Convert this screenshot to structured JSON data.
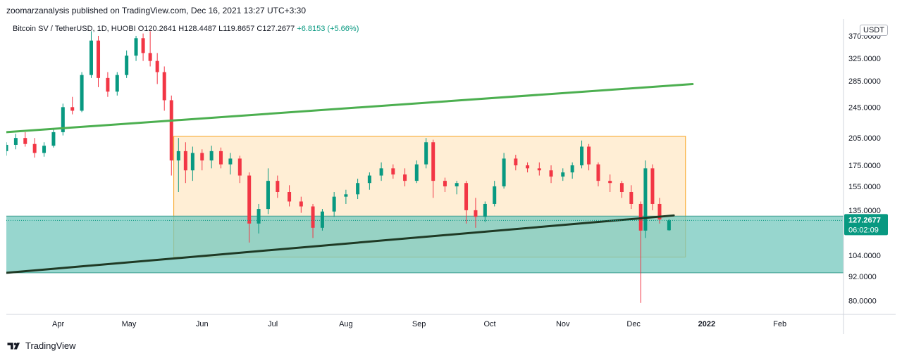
{
  "header": {
    "publisher": "zoomarzanalysis published on TradingView.com, Dec 16, 2021 13:27 UTC+3:30"
  },
  "legend": {
    "symbol": "Bitcoin SV / TetherUSD, 1D, HUOBI",
    "open_label": "O",
    "open": "120.2641",
    "high_label": "H",
    "high": "128.4487",
    "low_label": "L",
    "low": "119.8657",
    "close_label": "C",
    "close": "127.2677",
    "change": "+6.8153 (+5.66%)"
  },
  "unit": "USDT",
  "footer": {
    "brand": "TradingView"
  },
  "colors": {
    "up": "#089981",
    "down": "#f23645",
    "box": "#f7a21b",
    "zone": "#74c8bd",
    "trend_up": "#4caf50",
    "trend_support": "#1f3a25"
  },
  "chart_data": {
    "type": "candlestick",
    "title": "",
    "price_axis": {
      "scale": "log",
      "ticks": [
        80,
        92,
        104,
        135,
        155,
        175,
        205,
        245,
        285,
        325,
        370
      ],
      "tick_labels": [
        "80.0000",
        "92.0000",
        "104.0000",
        "135.0000",
        "155.0000",
        "175.0000",
        "205.0000",
        "245.0000",
        "285.0000",
        "325.0000",
        "370.0000"
      ]
    },
    "time_axis": {
      "range": [
        "2021-03-10",
        "2022-02-28"
      ],
      "labels": [
        {
          "date": "2021-04-01",
          "text": "Apr"
        },
        {
          "date": "2021-05-01",
          "text": "May"
        },
        {
          "date": "2021-06-01",
          "text": "Jun"
        },
        {
          "date": "2021-07-01",
          "text": "Jul"
        },
        {
          "date": "2021-08-01",
          "text": "Aug"
        },
        {
          "date": "2021-09-01",
          "text": "Sep"
        },
        {
          "date": "2021-10-01",
          "text": "Oct"
        },
        {
          "date": "2021-11-01",
          "text": "Nov"
        },
        {
          "date": "2021-12-01",
          "text": "Dec"
        },
        {
          "date": "2022-01-01",
          "text": "2022"
        },
        {
          "date": "2022-02-01",
          "text": "Feb"
        }
      ]
    },
    "last_price": {
      "value": 127.2677,
      "label": "127.2677",
      "countdown": "06:02:09"
    },
    "candles": [
      [
        "2021-03-10",
        190,
        200,
        185,
        197
      ],
      [
        "2021-03-14",
        197,
        210,
        192,
        205
      ],
      [
        "2021-03-18",
        205,
        212,
        195,
        198
      ],
      [
        "2021-03-22",
        198,
        205,
        183,
        188
      ],
      [
        "2021-03-26",
        188,
        200,
        184,
        196
      ],
      [
        "2021-03-30",
        196,
        215,
        194,
        212
      ],
      [
        "2021-04-03",
        212,
        250,
        208,
        245
      ],
      [
        "2021-04-07",
        245,
        260,
        235,
        240
      ],
      [
        "2021-04-11",
        240,
        300,
        238,
        295
      ],
      [
        "2021-04-15",
        295,
        380,
        290,
        360
      ],
      [
        "2021-04-18",
        360,
        370,
        275,
        290
      ],
      [
        "2021-04-22",
        290,
        300,
        260,
        268
      ],
      [
        "2021-04-26",
        268,
        300,
        262,
        295
      ],
      [
        "2021-04-30",
        295,
        340,
        290,
        330
      ],
      [
        "2021-05-04",
        330,
        370,
        320,
        365
      ],
      [
        "2021-05-07",
        365,
        375,
        320,
        335
      ],
      [
        "2021-05-10",
        335,
        380,
        310,
        320
      ],
      [
        "2021-05-13",
        320,
        335,
        280,
        300
      ],
      [
        "2021-05-16",
        300,
        310,
        240,
        255
      ],
      [
        "2021-05-19",
        255,
        262,
        165,
        180
      ],
      [
        "2021-05-22",
        180,
        205,
        150,
        190
      ],
      [
        "2021-05-25",
        190,
        200,
        158,
        170
      ],
      [
        "2021-05-28",
        170,
        195,
        160,
        188
      ],
      [
        "2021-06-01",
        188,
        192,
        170,
        180
      ],
      [
        "2021-06-05",
        180,
        196,
        172,
        190
      ],
      [
        "2021-06-09",
        190,
        194,
        172,
        176
      ],
      [
        "2021-06-13",
        176,
        188,
        166,
        182
      ],
      [
        "2021-06-17",
        182,
        185,
        158,
        165
      ],
      [
        "2021-06-21",
        165,
        168,
        112,
        125
      ],
      [
        "2021-06-25",
        125,
        140,
        118,
        136
      ],
      [
        "2021-06-29",
        136,
        172,
        132,
        160
      ],
      [
        "2021-07-03",
        160,
        165,
        145,
        150
      ],
      [
        "2021-07-08",
        150,
        156,
        138,
        142
      ],
      [
        "2021-07-13",
        142,
        146,
        133,
        138
      ],
      [
        "2021-07-18",
        138,
        140,
        115,
        122
      ],
      [
        "2021-07-22",
        122,
        136,
        120,
        134
      ],
      [
        "2021-07-27",
        134,
        150,
        130,
        146
      ],
      [
        "2021-08-01",
        146,
        152,
        140,
        148
      ],
      [
        "2021-08-06",
        148,
        162,
        144,
        158
      ],
      [
        "2021-08-11",
        158,
        168,
        152,
        165
      ],
      [
        "2021-08-16",
        165,
        178,
        160,
        172
      ],
      [
        "2021-08-21",
        172,
        176,
        162,
        166
      ],
      [
        "2021-08-26",
        166,
        172,
        155,
        160
      ],
      [
        "2021-08-31",
        160,
        180,
        158,
        176
      ],
      [
        "2021-09-04",
        176,
        205,
        172,
        200
      ],
      [
        "2021-09-07",
        200,
        203,
        145,
        160
      ],
      [
        "2021-09-12",
        160,
        163,
        150,
        155
      ],
      [
        "2021-09-17",
        155,
        160,
        148,
        158
      ],
      [
        "2021-09-21",
        158,
        160,
        125,
        135
      ],
      [
        "2021-09-25",
        135,
        145,
        122,
        130
      ],
      [
        "2021-09-29",
        130,
        142,
        126,
        140
      ],
      [
        "2021-10-03",
        140,
        160,
        138,
        155
      ],
      [
        "2021-10-07",
        155,
        188,
        153,
        182
      ],
      [
        "2021-10-12",
        182,
        186,
        170,
        175
      ],
      [
        "2021-10-17",
        175,
        178,
        168,
        172
      ],
      [
        "2021-10-22",
        172,
        178,
        165,
        170
      ],
      [
        "2021-10-27",
        170,
        175,
        158,
        164
      ],
      [
        "2021-11-01",
        164,
        172,
        160,
        168
      ],
      [
        "2021-11-05",
        168,
        178,
        162,
        175
      ],
      [
        "2021-11-09",
        175,
        202,
        172,
        195
      ],
      [
        "2021-11-12",
        195,
        198,
        170,
        176
      ],
      [
        "2021-11-16",
        176,
        178,
        155,
        160
      ],
      [
        "2021-11-21",
        160,
        166,
        150,
        158
      ],
      [
        "2021-11-26",
        158,
        160,
        145,
        150
      ],
      [
        "2021-11-30",
        150,
        156,
        136,
        140
      ],
      [
        "2021-12-04",
        140,
        142,
        79,
        120
      ],
      [
        "2021-12-06",
        120,
        180,
        115,
        172
      ],
      [
        "2021-12-09",
        172,
        176,
        135,
        140
      ],
      [
        "2021-12-12",
        140,
        145,
        125,
        128
      ],
      [
        "2021-12-16",
        120.2641,
        128.4487,
        119.8657,
        127.2677
      ]
    ],
    "drawings": [
      {
        "type": "rectangle",
        "from": {
          "time": "2021-05-20",
          "price": 207
        },
        "to": {
          "time": "2021-12-23",
          "price": 103
        }
      },
      {
        "type": "zone",
        "from_price": 130.5,
        "to_price": 94
      },
      {
        "type": "trend_line",
        "name": "resistance",
        "from": {
          "time": "2021-03-10",
          "price": 212
        },
        "to": {
          "time": "2021-12-26",
          "price": 280
        }
      },
      {
        "type": "trend_line",
        "name": "support",
        "from": {
          "time": "2021-03-10",
          "price": 94
        },
        "to": {
          "time": "2021-12-18",
          "price": 131
        }
      }
    ]
  }
}
